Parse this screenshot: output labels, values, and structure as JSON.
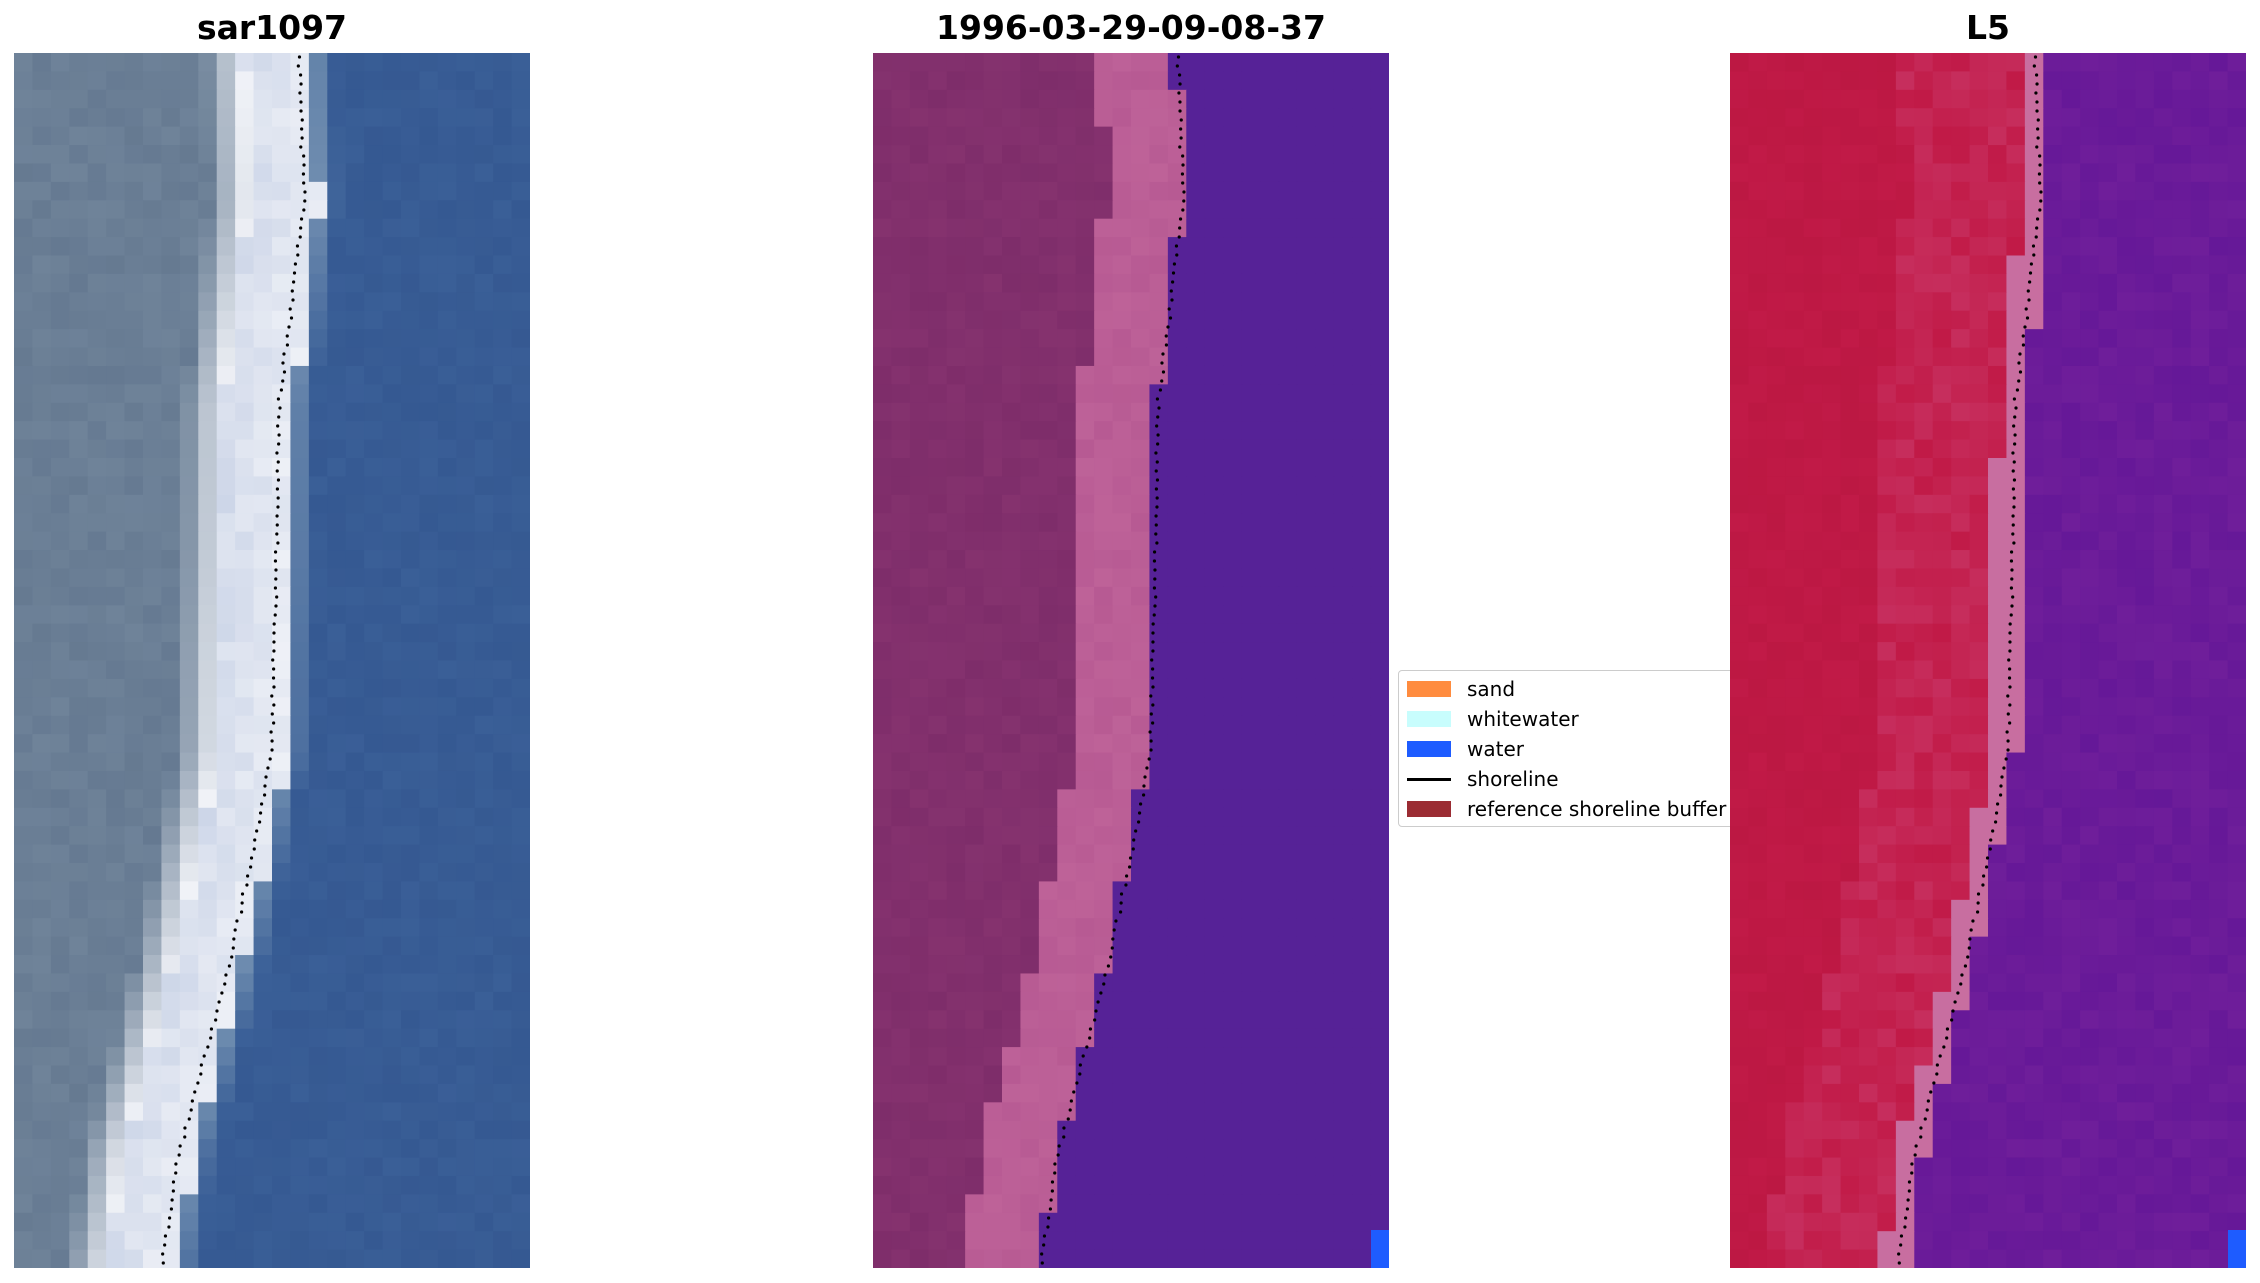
{
  "panels": [
    {
      "title": "sar1097",
      "style": "rgb"
    },
    {
      "title": "1996-03-29-09-08-37",
      "style": "classified"
    },
    {
      "title": "L5",
      "style": "mndwi"
    }
  ],
  "legend": {
    "items": [
      {
        "label": "sand",
        "type": "patch",
        "color": "#ff8c3f"
      },
      {
        "label": "whitewater",
        "type": "patch",
        "color": "#c8fdfd"
      },
      {
        "label": "water",
        "type": "patch",
        "color": "#1e5cff"
      },
      {
        "label": "shoreline",
        "type": "line",
        "color": "#000000"
      },
      {
        "label": "reference shoreline buffer",
        "type": "patch",
        "color": "#9b2c33"
      }
    ]
  },
  "colors": {
    "ocean": "#3a5f97",
    "land": "#6f8399",
    "surf": "#f1f3f8",
    "classified_water": "#562297",
    "classified_land": "#7e2d6a",
    "classified_buffer": "#b75a93",
    "index_land": "#c11a47",
    "index_water": "#6f1e9a",
    "shoreline": "#000000"
  }
}
